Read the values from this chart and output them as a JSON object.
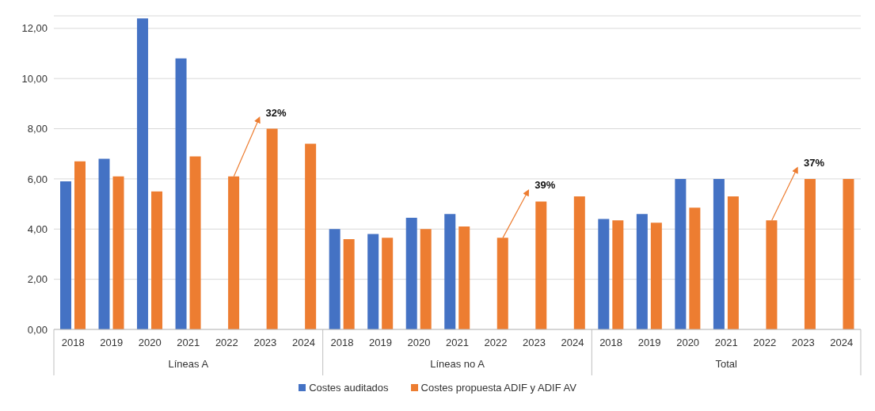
{
  "chart_data": {
    "type": "bar",
    "categories": [
      "2018",
      "2019",
      "2020",
      "2021",
      "2022",
      "2023",
      "2024",
      "2018",
      "2019",
      "2020",
      "2021",
      "2022",
      "2023",
      "2024",
      "2018",
      "2019",
      "2020",
      "2021",
      "2022",
      "2023",
      "2024"
    ],
    "series": [
      {
        "name": "Costes auditados",
        "color": "#4472c4",
        "values": [
          5.9,
          6.8,
          12.4,
          10.8,
          null,
          null,
          null,
          4.0,
          3.8,
          4.45,
          4.6,
          null,
          null,
          null,
          4.4,
          4.6,
          6.0,
          6.0,
          null,
          null,
          null
        ]
      },
      {
        "name": "Costes propuesta ADIF y ADIF AV",
        "color": "#ed7d31",
        "values": [
          6.7,
          6.1,
          5.5,
          6.9,
          6.1,
          8.0,
          7.4,
          3.6,
          3.65,
          4.0,
          4.1,
          3.65,
          5.1,
          5.3,
          4.35,
          4.25,
          4.85,
          5.3,
          4.35,
          6.0,
          6.0
        ]
      }
    ],
    "ylim": [
      0,
      12.5
    ],
    "yticks": [
      {
        "value": 0,
        "label": "0,00"
      },
      {
        "value": 2,
        "label": "2,00"
      },
      {
        "value": 4,
        "label": "4,00"
      },
      {
        "value": 6,
        "label": "6,00"
      },
      {
        "value": 8,
        "label": "8,00"
      },
      {
        "value": 10,
        "label": "10,00"
      },
      {
        "value": 12,
        "label": "12,00"
      }
    ],
    "grid": "y",
    "legend": "bottom",
    "annotations": [
      "Líneas A",
      "Líneas no A",
      "Total",
      "32%",
      "39%",
      "37%"
    ]
  }
}
